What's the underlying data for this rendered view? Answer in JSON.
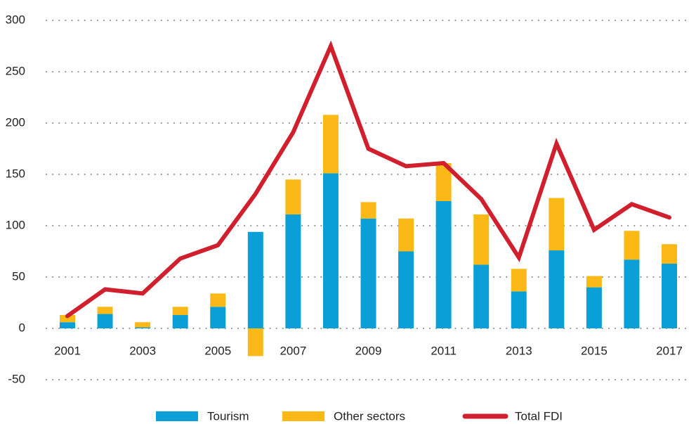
{
  "chart_data": {
    "type": "bar",
    "categories": [
      "2001",
      null,
      "2003",
      null,
      "2005",
      null,
      "2007",
      null,
      "2009",
      null,
      "2011",
      null,
      "2013",
      null,
      "2015",
      null,
      "2017"
    ],
    "series": [
      {
        "name": "Tourism",
        "color": "#0b9fd8",
        "values": [
          6,
          14,
          1,
          13,
          21,
          94,
          111,
          151,
          107,
          75,
          124,
          62,
          36,
          76,
          40,
          67,
          63
        ]
      },
      {
        "name": "Other sectors",
        "color": "#fbb917",
        "values": [
          7,
          7,
          5,
          8,
          13,
          -27,
          34,
          57,
          16,
          32,
          37,
          49,
          22,
          51,
          11,
          28,
          19
        ]
      },
      {
        "name": "Total FDI",
        "color": "#d0202e",
        "type": "line",
        "values": [
          12,
          38,
          34,
          68,
          81,
          131,
          191,
          275,
          175,
          158,
          161,
          126,
          69,
          180,
          96,
          121,
          108
        ]
      }
    ],
    "stacked": true,
    "ylim": [
      -50,
      300
    ],
    "yticks": [
      -50,
      0,
      50,
      100,
      150,
      200,
      250,
      300
    ],
    "grid": true,
    "legend": "bottom"
  }
}
